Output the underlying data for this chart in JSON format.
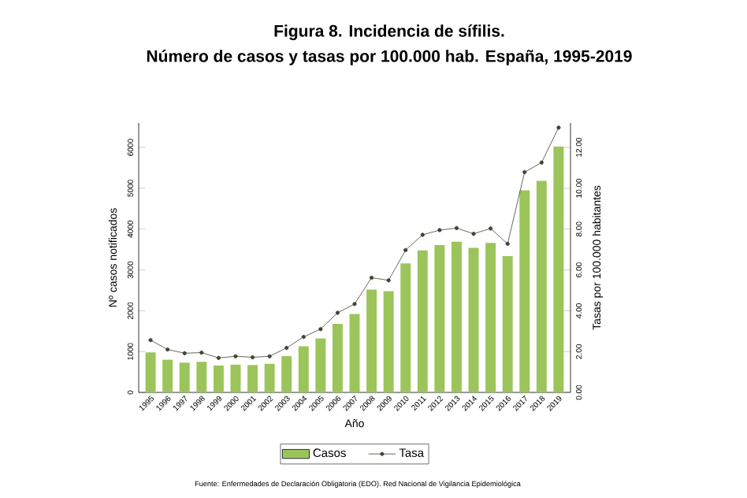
{
  "chart_data": {
    "type": "bar",
    "title": "Figura 8. Incidencia de sífilis.",
    "subtitle": "Número de casos y tasas por 100.000 hab.  España, 1995-2019",
    "xlabel": "Año",
    "ylabel": "Nº casos notificados",
    "y2label": "Tasas por 100.000 habitantes",
    "categories": [
      "1995",
      "1996",
      "1997",
      "1998",
      "1999",
      "2000",
      "2001",
      "2002",
      "2003",
      "2004",
      "2005",
      "2006",
      "2007",
      "2008",
      "2009",
      "2010",
      "2011",
      "2012",
      "2013",
      "2014",
      "2015",
      "2016",
      "2017",
      "2018",
      "2019"
    ],
    "series": [
      {
        "name": "Casos",
        "color": "#9bc55a",
        "values": [
          980,
          800,
          730,
          750,
          660,
          680,
          670,
          700,
          890,
          1130,
          1320,
          1680,
          1920,
          2520,
          2480,
          3160,
          3480,
          3610,
          3690,
          3540,
          3660,
          3340,
          4950,
          5180,
          6020
        ]
      },
      {
        "name": "Tasa",
        "type": "line",
        "axis": "y2",
        "color": "#3d4535",
        "marker": "circle",
        "values": [
          2.56,
          2.1,
          1.92,
          1.95,
          1.69,
          1.77,
          1.72,
          1.77,
          2.18,
          2.72,
          3.1,
          3.9,
          4.33,
          5.62,
          5.49,
          6.97,
          7.72,
          7.95,
          8.05,
          7.77,
          8.03,
          7.28,
          10.79,
          11.26,
          12.97
        ]
      }
    ],
    "ylim": [
      0,
      6600
    ],
    "yticks": [
      0,
      1000,
      2000,
      3000,
      4000,
      5000,
      6000
    ],
    "y2lim": [
      0,
      13.2
    ],
    "y2ticks": [
      {
        "value": 0,
        "label": "0.00"
      },
      {
        "value": 2,
        "label": "2.00"
      },
      {
        "value": 4,
        "label": "4.00"
      },
      {
        "value": 6,
        "label": "6.00"
      },
      {
        "value": 8,
        "label": "8.00"
      },
      {
        "value": 10,
        "label": "10.00"
      },
      {
        "value": 12,
        "label": "12.00"
      }
    ],
    "legend": "bottom",
    "annotations": [
      "Fuente: Enfermedades de Declaración Obligatoria (EDO). Red Nacional de Vigilancia Epidemiológica"
    ]
  }
}
